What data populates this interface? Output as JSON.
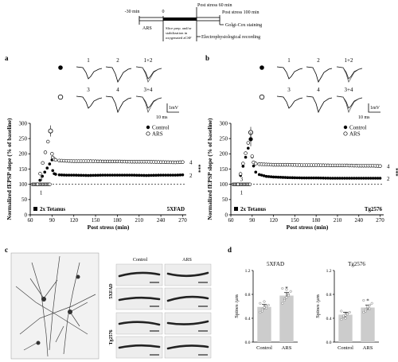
{
  "timeline": {
    "minus30": "-30 min",
    "zero": "0",
    "ars": "ARS",
    "slice_prep": [
      "Slice prep. and/or",
      "stabilization in",
      "oxygenated aCSF"
    ],
    "post60": "Post stress 60 min",
    "post100": "Post stress 100 min",
    "golgi": "Golgi-Cox staining",
    "ephys": "Electrophysiological recording"
  },
  "panel_a": {
    "letter": "a",
    "trace_labels": [
      "1",
      "2",
      "1+2",
      "3",
      "4",
      "3+4"
    ],
    "scale_v": "1mV",
    "scale_t": "10 ms",
    "strain": "5XFAD",
    "tetanus": "2x Tetanus",
    "significance": "***"
  },
  "panel_b": {
    "letter": "b",
    "trace_labels": [
      "1",
      "2",
      "1+2",
      "3",
      "4",
      "3+4"
    ],
    "scale_v": "1mV",
    "scale_t": "10 ms",
    "strain": "Tg2576",
    "tetanus": "2x Tetanus",
    "significance": "***"
  },
  "panel_c": {
    "letter": "c",
    "col_control": "Control",
    "col_ars": "ARS",
    "row_5xfad": "5XFAD",
    "row_tg": "Tg2576"
  },
  "panel_d": {
    "letter": "d"
  },
  "chart_data": [
    {
      "type": "line",
      "panel": "a",
      "strain": "5XFAD",
      "xlabel": "Post stress (min)",
      "ylabel": "Normalized fEPSP slope (% of baseline)",
      "xlim": [
        60,
        275
      ],
      "ylim": [
        0,
        300
      ],
      "xticks": [
        60,
        90,
        120,
        150,
        180,
        210,
        240,
        270
      ],
      "yticks": [
        0,
        50,
        100,
        150,
        200,
        250,
        300
      ],
      "reference_line": 100,
      "annotations": [
        "1",
        "2",
        "3",
        "4"
      ],
      "series": [
        {
          "name": "Control",
          "marker": "filled-circle",
          "x": [
            70,
            90,
            91,
            93,
            95,
            100,
            110,
            120,
            140,
            160,
            180,
            200,
            220,
            240,
            260,
            270
          ],
          "y": [
            100,
            180,
            145,
            135,
            133,
            131,
            130,
            130,
            129,
            130,
            130,
            130,
            129,
            130,
            130,
            131
          ]
        },
        {
          "name": "ARS",
          "marker": "open-circle",
          "x": [
            70,
            88,
            90,
            91,
            93,
            95,
            100,
            110,
            120,
            140,
            160,
            180,
            200,
            220,
            240,
            260,
            270
          ],
          "y": [
            100,
            275,
            200,
            188,
            182,
            180,
            178,
            177,
            176,
            176,
            175,
            175,
            174,
            174,
            173,
            172,
            173
          ]
        }
      ]
    },
    {
      "type": "line",
      "panel": "b",
      "strain": "Tg2576",
      "xlabel": "Post stress (min)",
      "ylabel": "Normalized fEPSP slope (% of baseline)",
      "xlim": [
        60,
        275
      ],
      "ylim": [
        0,
        300
      ],
      "xticks": [
        60,
        90,
        120,
        150,
        180,
        210,
        240,
        270
      ],
      "yticks": [
        0,
        50,
        100,
        150,
        200,
        250,
        300
      ],
      "reference_line": 100,
      "annotations": [
        "1",
        "2",
        "3",
        "4"
      ],
      "series": [
        {
          "name": "Control",
          "marker": "filled-circle",
          "x": [
            70,
            88,
            90,
            92,
            95,
            100,
            110,
            120,
            140,
            160,
            180,
            200,
            220,
            240,
            260,
            270
          ],
          "y": [
            100,
            248,
            190,
            160,
            140,
            132,
            126,
            124,
            122,
            121,
            121,
            120,
            120,
            120,
            120,
            120
          ]
        },
        {
          "name": "ARS",
          "marker": "open-circle",
          "x": [
            70,
            88,
            90,
            92,
            95,
            100,
            110,
            120,
            140,
            160,
            180,
            200,
            220,
            240,
            260,
            270
          ],
          "y": [
            100,
            270,
            192,
            172,
            168,
            166,
            165,
            164,
            164,
            163,
            163,
            162,
            162,
            161,
            161,
            160
          ]
        }
      ]
    },
    {
      "type": "bar",
      "panel": "d-left",
      "title": "5XFAD",
      "ylabel": "Spines /µm",
      "categories": [
        "Control",
        "ARS"
      ],
      "values": [
        0.59,
        0.78
      ],
      "errors": [
        0.04,
        0.05
      ],
      "ylim": [
        0,
        1.2
      ],
      "yticks": [
        0.0,
        0.4,
        0.8,
        1.2
      ],
      "significance": [
        "",
        "*"
      ],
      "points": [
        [
          0.5,
          0.55,
          0.58,
          0.6,
          0.62,
          0.65,
          0.52,
          0.68,
          0.57
        ],
        [
          0.65,
          0.72,
          0.75,
          0.8,
          0.85,
          0.9,
          0.7,
          0.88,
          0.78
        ]
      ]
    },
    {
      "type": "bar",
      "panel": "d-right",
      "title": "Tg2576",
      "ylabel": "Spines /µm",
      "categories": [
        "Control",
        "ARS"
      ],
      "values": [
        0.46,
        0.58
      ],
      "errors": [
        0.04,
        0.04
      ],
      "ylim": [
        0,
        1.2
      ],
      "yticks": [
        0.0,
        0.4,
        0.8,
        1.2
      ],
      "significance": [
        "",
        "*"
      ],
      "points": [
        [
          0.38,
          0.42,
          0.45,
          0.48,
          0.5,
          0.52,
          0.44,
          0.4,
          0.47
        ],
        [
          0.5,
          0.55,
          0.58,
          0.62,
          0.65,
          0.7,
          0.52,
          0.6,
          0.56
        ]
      ]
    }
  ]
}
